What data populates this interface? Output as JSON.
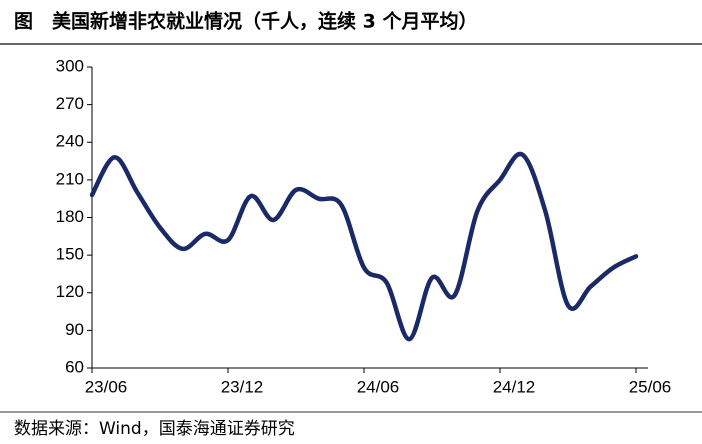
{
  "chart_data": {
    "type": "line",
    "title": "图　美国新增非农就业情况（千人，连续 3 个月平均）",
    "source": "数据来源：Wind，国泰海通证券研究",
    "categories": [
      "23/06",
      null,
      null,
      null,
      null,
      null,
      "23/12",
      null,
      null,
      null,
      null,
      null,
      "24/06",
      null,
      null,
      null,
      null,
      null,
      "24/12",
      null,
      null,
      null,
      null,
      null,
      "25/06"
    ],
    "series": [
      {
        "name": null,
        "color": "#1b2a66",
        "values": [
          198,
          228,
          200,
          172,
          155,
          167,
          162,
          197,
          178,
          202,
          195,
          190,
          140,
          128,
          83,
          132,
          118,
          185,
          210,
          230,
          185,
          110,
          125,
          140,
          149
        ]
      }
    ],
    "ylim": [
      60,
      300
    ],
    "yticks": [
      60,
      90,
      120,
      150,
      180,
      210,
      240,
      270,
      300
    ]
  }
}
